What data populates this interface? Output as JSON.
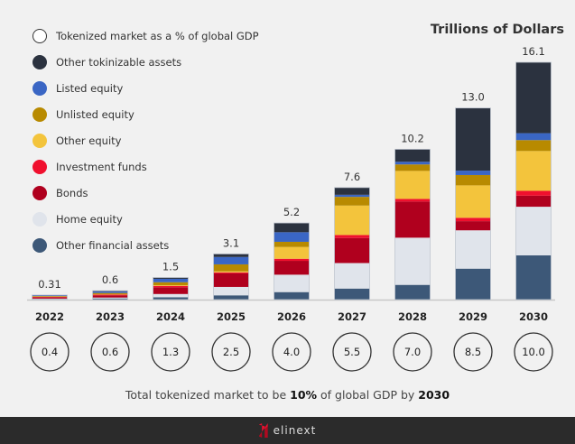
{
  "chart_data": {
    "type": "bar",
    "stacked": true,
    "unit_label": "Trillions of Dollars",
    "categories": [
      "2022",
      "2023",
      "2024",
      "2025",
      "2026",
      "2027",
      "2028",
      "2029",
      "2030"
    ],
    "totals": [
      "0.31",
      "0.6",
      "1.5",
      "3.1",
      "5.2",
      "7.6",
      "10.2",
      "13.0",
      "16.1"
    ],
    "gdp_percent": [
      "0.4",
      "0.6",
      "1.3",
      "2.5",
      "4.0",
      "5.5",
      "7.0",
      "8.5",
      "10.0"
    ],
    "gdp_legend": "Tokenized market as a % of global GDP",
    "ylim": [
      0,
      16.1
    ],
    "grid": false,
    "legend_position": "top-left",
    "series": [
      {
        "name": "Other financial assets",
        "color": "#3d5878",
        "values": [
          0.04,
          0.08,
          0.16,
          0.29,
          0.51,
          0.75,
          1.0,
          2.1,
          3.0
        ]
      },
      {
        "name": "Home equity",
        "color": "#e0e4eb",
        "values": [
          0.03,
          0.06,
          0.22,
          0.57,
          1.18,
          1.73,
          3.2,
          2.6,
          3.3
        ]
      },
      {
        "name": "Bonds",
        "color": "#b0001e",
        "values": [
          0.08,
          0.15,
          0.46,
          0.92,
          0.94,
          1.7,
          2.45,
          0.62,
          0.75
        ]
      },
      {
        "name": "Investment funds",
        "color": "#f0102e",
        "values": [
          0.03,
          0.05,
          0.09,
          0.07,
          0.14,
          0.2,
          0.18,
          0.23,
          0.33
        ]
      },
      {
        "name": "Other equity",
        "color": "#f3c43c",
        "values": [
          0.02,
          0.03,
          0.05,
          0.07,
          0.8,
          2.0,
          1.9,
          2.2,
          2.7
        ]
      },
      {
        "name": "Unlisted equity",
        "color": "#b88a00",
        "values": [
          0.04,
          0.08,
          0.2,
          0.47,
          0.35,
          0.59,
          0.44,
          0.7,
          0.74
        ]
      },
      {
        "name": "Listed equity",
        "color": "#3a66c4",
        "values": [
          0.05,
          0.1,
          0.23,
          0.5,
          0.65,
          0.14,
          0.18,
          0.3,
          0.47
        ]
      },
      {
        "name": "Other tokinizable assets",
        "color": "#2b323f",
        "values": [
          0.02,
          0.05,
          0.09,
          0.21,
          0.63,
          0.49,
          0.85,
          4.25,
          4.81
        ]
      }
    ]
  },
  "footer_text": {
    "pre": "Total tokenized market to be ",
    "pct": "10%",
    "mid": " of global GDP by ",
    "year": "2030"
  },
  "brand": "elinext"
}
